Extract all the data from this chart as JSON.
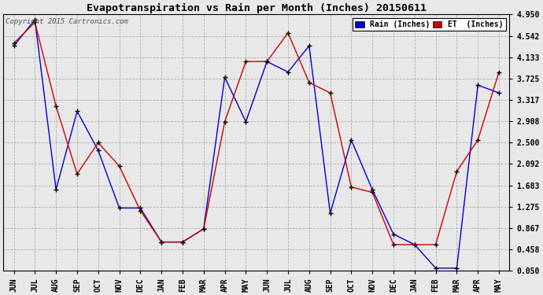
{
  "title": "Evapotranspiration vs Rain per Month (Inches) 20150611",
  "copyright": "Copyright 2015 Cartronics.com",
  "months": [
    "JUN",
    "JUL",
    "AUG",
    "SEP",
    "OCT",
    "NOV",
    "DEC",
    "JAN",
    "FEB",
    "MAR",
    "APR",
    "MAY",
    "JUN",
    "JUL",
    "AUG",
    "SEP",
    "OCT",
    "NOV",
    "DEC",
    "JAN",
    "FEB",
    "MAR",
    "APR",
    "MAY"
  ],
  "rain": [
    4.35,
    4.85,
    1.6,
    3.1,
    2.35,
    1.25,
    1.25,
    0.6,
    0.6,
    0.85,
    3.75,
    2.9,
    4.05,
    3.85,
    4.35,
    1.15,
    2.55,
    1.6,
    0.75,
    0.55,
    0.1,
    0.1,
    3.6,
    3.45
  ],
  "et": [
    4.4,
    4.8,
    3.2,
    1.9,
    2.5,
    2.05,
    1.2,
    0.6,
    0.6,
    0.85,
    2.9,
    4.05,
    4.05,
    4.6,
    3.65,
    3.45,
    1.65,
    1.55,
    0.55,
    0.55,
    0.55,
    1.95,
    2.55,
    3.85
  ],
  "rain_color": "#0000cc",
  "et_color": "#cc0000",
  "marker_color": "#000000",
  "bg_color": "#e8e8e8",
  "plot_bg": "#d8d8d8",
  "grid_color": "#aaaaaa",
  "yticks": [
    0.05,
    0.458,
    0.867,
    1.275,
    1.683,
    2.092,
    2.5,
    2.908,
    3.317,
    3.725,
    4.133,
    4.542,
    4.95
  ],
  "ylim": [
    0.05,
    4.95
  ],
  "legend_rain_label": "Rain (Inches)",
  "legend_et_label": "ET  (Inches)"
}
